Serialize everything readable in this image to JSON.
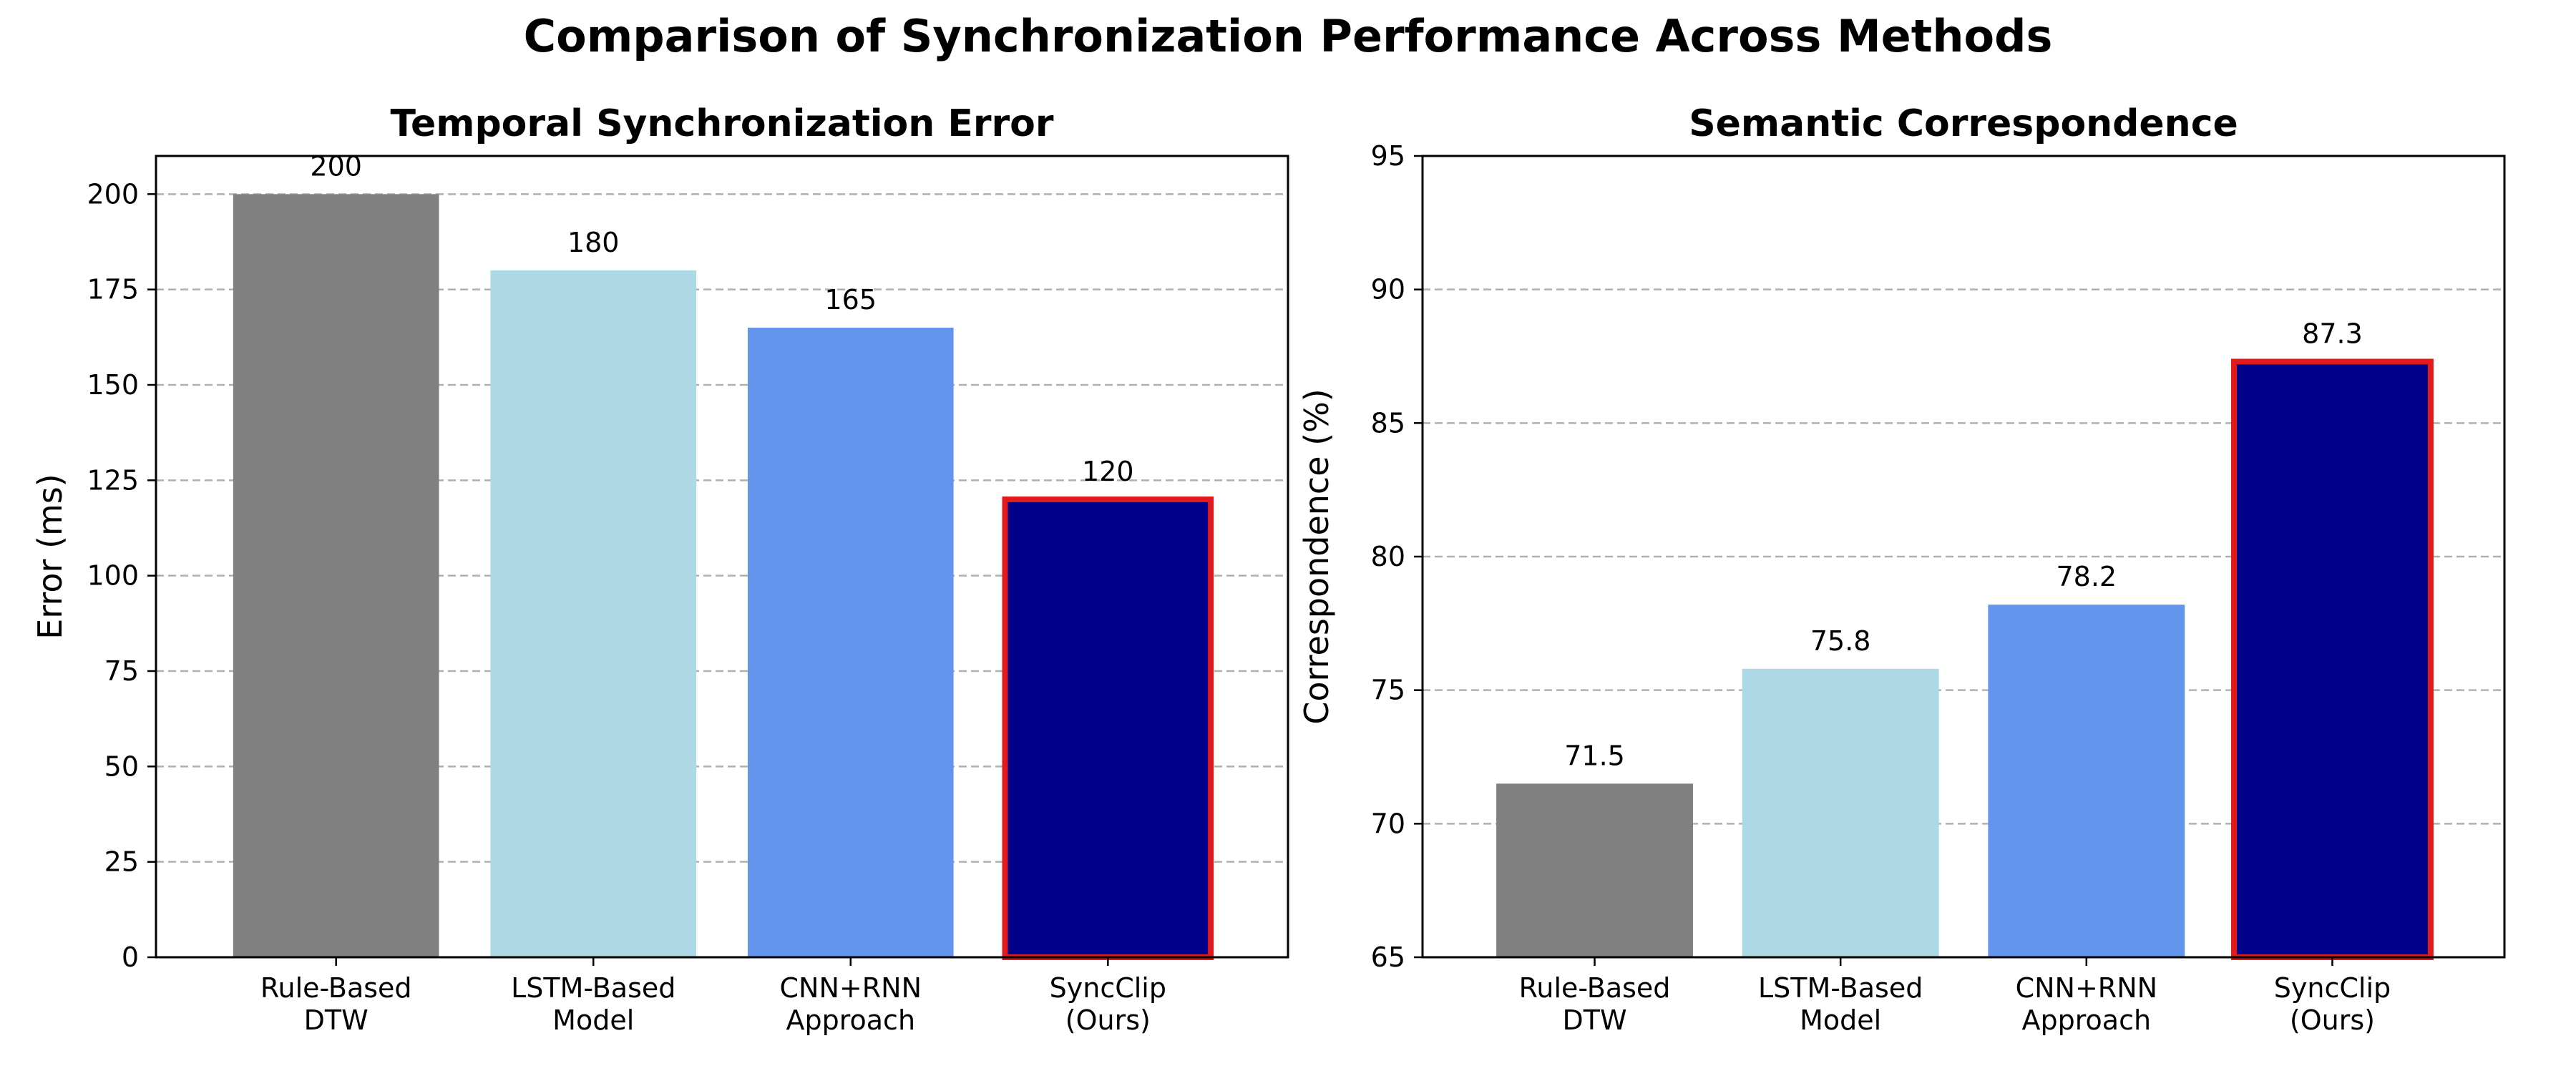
{
  "figure": {
    "title": "Comparison of Synchronization Performance Across Methods"
  },
  "chart_data": [
    {
      "type": "bar",
      "title": "Temporal Synchronization Error",
      "xlabel": "",
      "ylabel": "Error (ms)",
      "categories": [
        "Rule-Based\nDTW",
        "LSTM-Based\nModel",
        "CNN+RNN\nApproach",
        "SyncClip\n(Ours)"
      ],
      "values": [
        200,
        180,
        165,
        120
      ],
      "value_labels": [
        "200",
        "180",
        "165",
        "120"
      ],
      "colors": [
        "#808080",
        "#add8e6",
        "#6495ed",
        "#00008b"
      ],
      "highlight_index": 3,
      "highlight_edge_color": "#e31a1c",
      "ylim": [
        0,
        210
      ],
      "yticks": [
        0,
        25,
        50,
        75,
        100,
        125,
        150,
        175,
        200
      ],
      "ytick_labels": [
        "0",
        "25",
        "50",
        "75",
        "100",
        "125",
        "150",
        "175",
        "200"
      ],
      "grid": "y-dashed",
      "legend": "none"
    },
    {
      "type": "bar",
      "title": "Semantic Correspondence",
      "xlabel": "",
      "ylabel": "Correspondence (%)",
      "categories": [
        "Rule-Based\nDTW",
        "LSTM-Based\nModel",
        "CNN+RNN\nApproach",
        "SyncClip\n(Ours)"
      ],
      "values": [
        71.5,
        75.8,
        78.2,
        87.3
      ],
      "value_labels": [
        "71.5",
        "75.8",
        "78.2",
        "87.3"
      ],
      "colors": [
        "#808080",
        "#add8e6",
        "#6495ed",
        "#00008b"
      ],
      "highlight_index": 3,
      "highlight_edge_color": "#e31a1c",
      "ylim": [
        65,
        95
      ],
      "yticks": [
        65,
        70,
        75,
        80,
        85,
        90,
        95
      ],
      "ytick_labels": [
        "65",
        "70",
        "75",
        "80",
        "85",
        "90",
        "95"
      ],
      "grid": "y-dashed",
      "legend": "none"
    }
  ]
}
